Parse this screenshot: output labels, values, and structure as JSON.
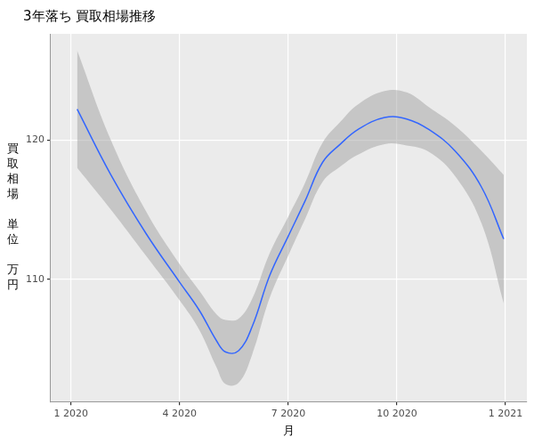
{
  "chart_data": {
    "type": "line",
    "title": "3年落ち 買取相場推移",
    "x_label": "月",
    "y_label": "買取相場 単位 万円",
    "x": [
      1.17,
      2.1,
      3.07,
      4.0,
      4.54,
      5.02,
      5.27,
      5.63,
      6.0,
      6.49,
      7.0,
      7.46,
      7.95,
      8.44,
      8.93,
      9.66,
      10.27,
      10.88,
      11.61,
      12.34,
      12.95
    ],
    "values": [
      122.2,
      117.5,
      113.3,
      109.8,
      107.8,
      105.6,
      104.8,
      104.9,
      106.6,
      110.3,
      113.1,
      115.6,
      118.4,
      119.7,
      120.75,
      121.6,
      121.5,
      120.75,
      119.2,
      116.6,
      112.9
    ],
    "lower": [
      118.0,
      115.0,
      111.7,
      108.5,
      106.4,
      103.7,
      102.5,
      102.6,
      104.6,
      108.7,
      111.7,
      114.3,
      117.0,
      118.1,
      118.95,
      119.7,
      119.6,
      119.15,
      117.4,
      114.0,
      108.3
    ],
    "upper": [
      126.4,
      120.0,
      114.9,
      111.1,
      109.2,
      107.5,
      107.1,
      107.2,
      108.6,
      111.9,
      114.5,
      116.9,
      119.8,
      121.3,
      122.55,
      123.5,
      123.4,
      122.35,
      121.0,
      119.2,
      117.5
    ],
    "color": "#3366FF",
    "xlim": [
      0.44,
      13.59
    ],
    "xticks": [
      {
        "value": 1,
        "label": "1 2020"
      },
      {
        "value": 4,
        "label": "4 2020"
      },
      {
        "value": 7,
        "label": "7 2020"
      },
      {
        "value": 10,
        "label": "10 2020"
      },
      {
        "value": 13,
        "label": "1 2021"
      }
    ],
    "ylim": [
      101.25,
      127.6
    ],
    "yticks": [
      110,
      120
    ],
    "grid": true
  }
}
